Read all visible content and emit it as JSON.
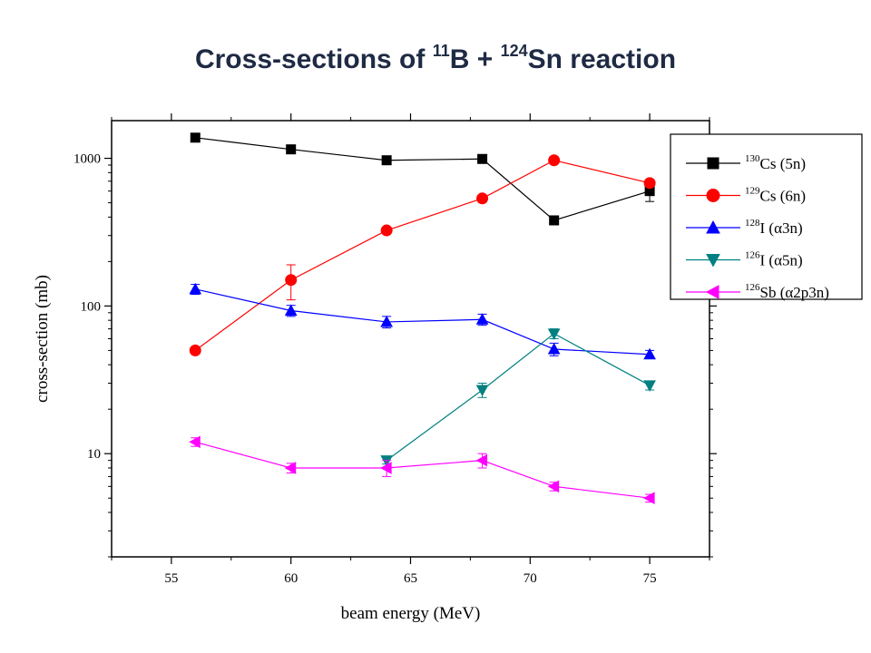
{
  "chart_data": {
    "type": "line",
    "title_parts": [
      {
        "text": "Cross-sections of "
      },
      {
        "sup": "11"
      },
      {
        "text": "B + "
      },
      {
        "sup": "124"
      },
      {
        "text": "Sn reaction"
      }
    ],
    "xlabel": "beam energy (MeV)",
    "ylabel": "cross-section (mb)",
    "xlim": [
      52.5,
      77.5
    ],
    "ylim": [
      2,
      1800
    ],
    "yscale": "log",
    "xticks": [
      55,
      60,
      65,
      70,
      75
    ],
    "xtick_labels": [
      "55",
      "60",
      "65",
      "70",
      "75"
    ],
    "yticks": [
      10,
      100,
      1000
    ],
    "ytick_labels": [
      "10",
      "100",
      "1000"
    ],
    "grid": false,
    "legend_position": "top-right",
    "series": [
      {
        "nucleus_sup": "130",
        "nucleus": "Cs",
        "channel": " (5n)",
        "color": "#000000",
        "marker": "square",
        "x": [
          56,
          60,
          64,
          68,
          71,
          75
        ],
        "y": [
          1380,
          1150,
          970,
          990,
          380,
          600
        ],
        "err": [
          0,
          0,
          0,
          0,
          0,
          90
        ]
      },
      {
        "nucleus_sup": "129",
        "nucleus": "Cs",
        "channel": " (6n)",
        "color": "#ff0000",
        "marker": "circle",
        "x": [
          56,
          60,
          64,
          68,
          71,
          75
        ],
        "y": [
          50,
          150,
          325,
          535,
          970,
          680
        ],
        "err": [
          0,
          40,
          0,
          0,
          0,
          0
        ]
      },
      {
        "nucleus_sup": "128",
        "nucleus": "I",
        "channel": " (α3n)",
        "color": "#0000ff",
        "marker": "triangle-up",
        "x": [
          56,
          60,
          64,
          68,
          71,
          75
        ],
        "y": [
          130,
          93,
          78,
          81,
          51,
          47
        ],
        "err": [
          10,
          8,
          7,
          7,
          5,
          3
        ]
      },
      {
        "nucleus_sup": "126",
        "nucleus": "I",
        "channel": " (α5n)",
        "color": "#008080",
        "marker": "triangle-down",
        "x": [
          64,
          68,
          71,
          75
        ],
        "y": [
          9,
          27,
          65,
          29
        ],
        "err": [
          0.5,
          3,
          5,
          2
        ]
      },
      {
        "nucleus_sup": "126",
        "nucleus": "Sb",
        "channel": " (α2p3n)",
        "color": "#ff00ff",
        "marker": "triangle-left",
        "x": [
          56,
          60,
          64,
          68,
          71,
          75
        ],
        "y": [
          12,
          8,
          8,
          9,
          6,
          5
        ],
        "err": [
          0.8,
          0.6,
          1,
          1,
          0.4,
          0.3
        ]
      }
    ]
  }
}
